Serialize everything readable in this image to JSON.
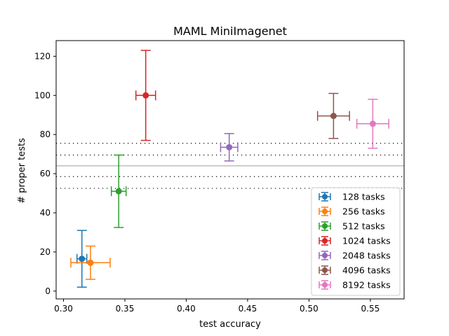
{
  "chart_data": {
    "type": "scatter",
    "title": "MAML MiniImagenet",
    "xlabel": "test accuracy",
    "ylabel": "# proper tests",
    "xlim": [
      0.294,
      0.5775
    ],
    "ylim": [
      -4,
      128
    ],
    "xticks": [
      0.3,
      0.35,
      0.4,
      0.45,
      0.5,
      0.55
    ],
    "xtick_labels": [
      "0.30",
      "0.35",
      "0.40",
      "0.45",
      "0.50",
      "0.55"
    ],
    "yticks": [
      0,
      20,
      40,
      60,
      80,
      100,
      120
    ],
    "ytick_labels": [
      "0",
      "20",
      "40",
      "60",
      "80",
      "100",
      "120"
    ],
    "grid": false,
    "legend_position": "lower right",
    "reference_lines": {
      "solid": {
        "y": 64,
        "color": "#b0b0b0"
      },
      "dotted": {
        "y": [
          75.5,
          69.5,
          58.5,
          52.5
        ],
        "color": "#000000"
      }
    },
    "series": [
      {
        "name": "128 tasks",
        "color": "#1f77b4",
        "x": 0.315,
        "y": 16.5,
        "x_err": 0.004,
        "y_err": 14.5
      },
      {
        "name": "256 tasks",
        "color": "#ff7f0e",
        "x": 0.322,
        "y": 14.5,
        "x_err": 0.016,
        "y_err": 8.5
      },
      {
        "name": "512 tasks",
        "color": "#2ca02c",
        "x": 0.345,
        "y": 51.0,
        "x_err": 0.006,
        "y_err": 18.5
      },
      {
        "name": "1024 tasks",
        "color": "#d62728",
        "x": 0.367,
        "y": 100.0,
        "x_err": 0.008,
        "y_err": 23.0
      },
      {
        "name": "2048 tasks",
        "color": "#9467bd",
        "x": 0.435,
        "y": 73.5,
        "x_err": 0.007,
        "y_err": 7.0
      },
      {
        "name": "4096 tasks",
        "color": "#8c564b",
        "x": 0.52,
        "y": 89.5,
        "x_err": 0.013,
        "y_err": 11.5
      },
      {
        "name": "8192 tasks",
        "color": "#e377c2",
        "x": 0.552,
        "y": 85.5,
        "x_err": 0.013,
        "y_err": 12.5
      }
    ]
  }
}
